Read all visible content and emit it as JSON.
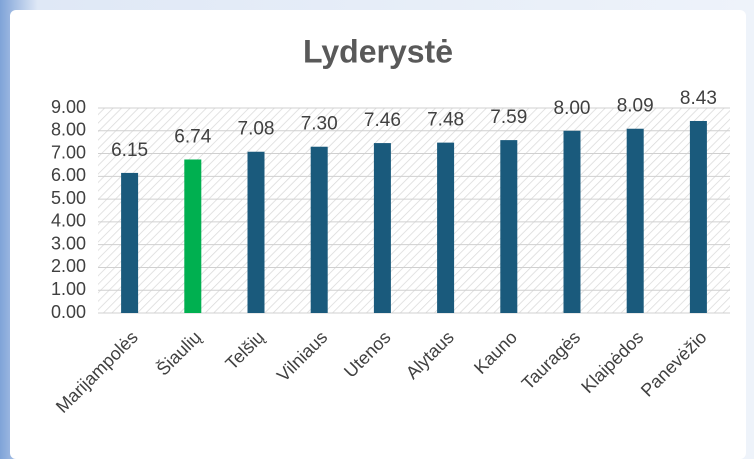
{
  "chart_data": {
    "type": "bar",
    "title": "Lyderystė",
    "categories": [
      "Marijampolės",
      "Šiaulių",
      "Telšių",
      "Vilniaus",
      "Utenos",
      "Alytaus",
      "Kauno",
      "Tauragės",
      "Klaipėdos",
      "Panevėžio"
    ],
    "values": [
      6.15,
      6.74,
      7.08,
      7.3,
      7.46,
      7.48,
      7.59,
      8.0,
      8.09,
      8.43
    ],
    "value_labels": [
      "6.15",
      "6.74",
      "7.08",
      "7.30",
      "7.46",
      "7.48",
      "7.59",
      "8.00",
      "8.09",
      "8.43"
    ],
    "colors": [
      "#1a5a7c",
      "#00b050",
      "#1a5a7c",
      "#1a5a7c",
      "#1a5a7c",
      "#1a5a7c",
      "#1a5a7c",
      "#1a5a7c",
      "#1a5a7c",
      "#1a5a7c"
    ],
    "ylim": [
      0,
      9
    ],
    "yticks": [
      {
        "value": 0,
        "label": "0.00"
      },
      {
        "value": 1,
        "label": "1.00"
      },
      {
        "value": 2,
        "label": "2.00"
      },
      {
        "value": 3,
        "label": "3.00"
      },
      {
        "value": 4,
        "label": "4.00"
      },
      {
        "value": 5,
        "label": "5.00"
      },
      {
        "value": 6,
        "label": "6.00"
      },
      {
        "value": 7,
        "label": "7.00"
      },
      {
        "value": 8,
        "label": "8.00"
      },
      {
        "value": 9,
        "label": "9.00"
      }
    ],
    "grid": true
  }
}
